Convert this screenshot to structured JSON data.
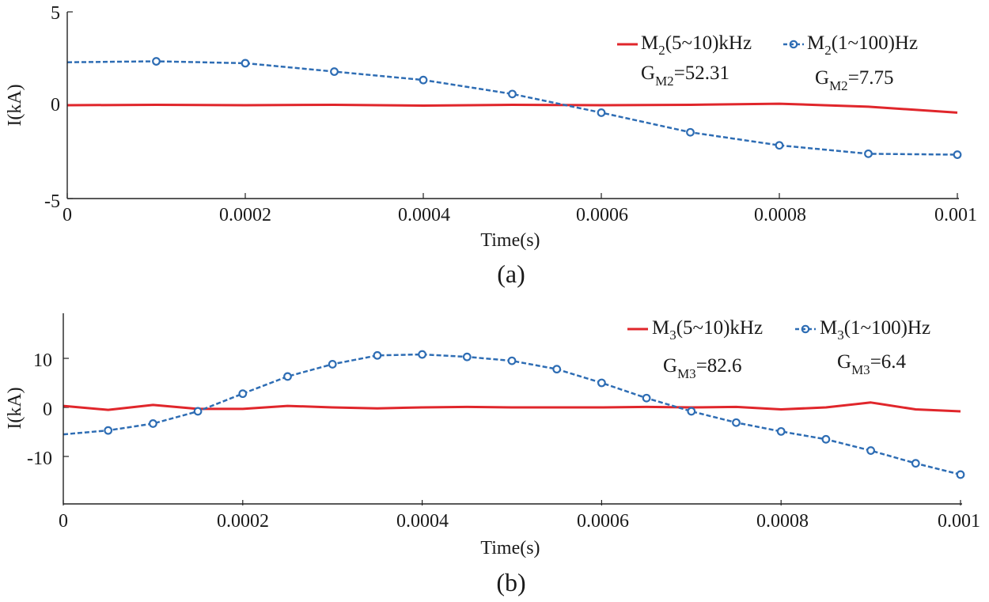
{
  "figure": {
    "colors": {
      "low_freq": "#2e6db4",
      "high_freq": "#e0262b"
    }
  },
  "chart_data": [
    {
      "type": "line",
      "panel": "a",
      "caption": "(a)",
      "xlabel": "Time(s)",
      "ylabel": "I(kA)",
      "xlim": [
        0,
        0.001
      ],
      "ylim": [
        -5,
        5
      ],
      "xticks": [
        0,
        0.0002,
        0.0004,
        0.0006,
        0.0008,
        0.001
      ],
      "xtick_labels": [
        "0",
        "0.0002",
        "0.0004",
        "0.0006",
        "0.0008",
        "0.001"
      ],
      "yticks": [
        -5,
        0,
        5
      ],
      "ytick_labels": [
        "-5",
        "0",
        "5"
      ],
      "series": [
        {
          "name": "high-band",
          "legend_main": "M",
          "legend_sub": "2",
          "legend_rest": "(5~10)kHz",
          "style": "solid",
          "color": "#e0262b",
          "x": [
            0,
            0.0001,
            0.0002,
            0.0003,
            0.0004,
            0.0005,
            0.0006,
            0.0007,
            0.0008,
            0.00085,
            0.0009,
            0.001
          ],
          "y": [
            0.0,
            0.02,
            0.0,
            0.02,
            -0.02,
            0.02,
            0.0,
            0.02,
            0.08,
            0.0,
            -0.08,
            -0.4
          ]
        },
        {
          "name": "low-band",
          "legend_main": "M",
          "legend_sub": "2",
          "legend_rest": "(1~100)Hz",
          "style": "dashed-markers",
          "color": "#2e6db4",
          "x": [
            0,
            0.0001,
            0.0002,
            0.0003,
            0.0004,
            0.0005,
            0.0006,
            0.0007,
            0.0008,
            0.0009,
            0.001
          ],
          "y": [
            2.3,
            2.35,
            2.25,
            1.8,
            1.35,
            0.6,
            -0.4,
            -1.45,
            -2.15,
            -2.6,
            -2.65
          ],
          "markers": [
            false,
            true,
            true,
            true,
            true,
            true,
            true,
            true,
            true,
            true,
            true
          ]
        }
      ],
      "annotations": [
        {
          "main": "G",
          "sub": "M2",
          "rest": "=52.31"
        },
        {
          "main": "G",
          "sub": "M2",
          "rest": "=7.75"
        }
      ]
    },
    {
      "type": "line",
      "panel": "b",
      "caption": "(b)",
      "xlabel": "Time(s)",
      "ylabel": "I(kA)",
      "xlim": [
        0,
        0.001
      ],
      "ylim": [
        -20,
        20
      ],
      "xticks": [
        0,
        0.0002,
        0.0004,
        0.0006,
        0.0008,
        0.001
      ],
      "xtick_labels": [
        "0",
        "0.0002",
        "0.0004",
        "0.0006",
        "0.0008",
        "0.001"
      ],
      "yticks": [
        -10,
        0,
        10
      ],
      "ytick_labels": [
        "-10",
        "0",
        "10"
      ],
      "series": [
        {
          "name": "high-band",
          "legend_main": "M",
          "legend_sub": "3",
          "legend_rest": "(5~10)kHz",
          "style": "solid",
          "color": "#e0262b",
          "x": [
            0,
            5e-05,
            0.0001,
            0.00015,
            0.0002,
            0.00025,
            0.0003,
            0.00035,
            0.0004,
            0.00045,
            0.0005,
            0.00055,
            0.0006,
            0.00065,
            0.0007,
            0.00075,
            0.0008,
            0.00085,
            0.0009,
            0.00095,
            0.001
          ],
          "y": [
            0.3,
            -0.5,
            0.5,
            -0.3,
            -0.3,
            0.3,
            0.0,
            -0.2,
            0.0,
            0.1,
            0.0,
            0.0,
            0.0,
            0.1,
            0.0,
            0.1,
            -0.4,
            0.0,
            1.0,
            -0.4,
            -0.8
          ]
        },
        {
          "name": "low-band",
          "legend_main": "M",
          "legend_sub": "3",
          "legend_rest": "(1~100)Hz",
          "style": "dashed-markers",
          "color": "#2e6db4",
          "x": [
            0,
            5e-05,
            0.0001,
            0.00015,
            0.0002,
            0.00025,
            0.0003,
            0.00035,
            0.0004,
            0.00045,
            0.0005,
            0.00055,
            0.0006,
            0.00065,
            0.0007,
            0.00075,
            0.0008,
            0.00085,
            0.0009,
            0.00095,
            0.001
          ],
          "y": [
            -5.5,
            -4.7,
            -3.3,
            -0.8,
            2.8,
            6.3,
            8.8,
            10.6,
            10.8,
            10.3,
            9.5,
            7.8,
            5.0,
            1.9,
            -0.8,
            -3.1,
            -4.9,
            -6.5,
            -8.8,
            -11.4,
            -13.7
          ],
          "markers": [
            false,
            true,
            true,
            true,
            true,
            true,
            true,
            true,
            true,
            true,
            true,
            true,
            true,
            true,
            true,
            true,
            true,
            true,
            true,
            true,
            true
          ]
        }
      ],
      "annotations": [
        {
          "main": "G",
          "sub": "M3",
          "rest": "=82.6"
        },
        {
          "main": "G",
          "sub": "M3",
          "rest": "=6.4"
        }
      ]
    }
  ]
}
